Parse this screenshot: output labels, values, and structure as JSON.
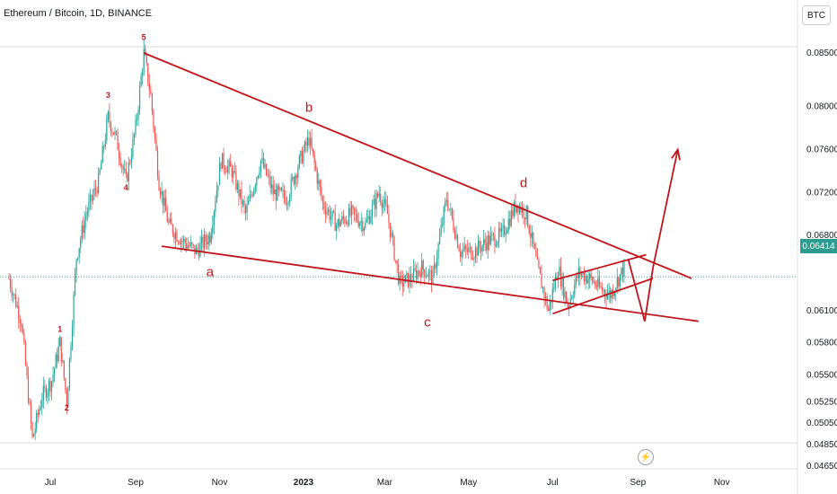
{
  "title": "Ethereum / Bitcoin, 1D, BINANCE",
  "currency_button": "BTC",
  "current_price": "0.06414",
  "colors": {
    "up": "#26a69a",
    "down": "#ef5350",
    "drawing": "#c0151a",
    "wave_label": "#c0151a"
  },
  "icons": [
    "lightning-icon"
  ],
  "chart_data": {
    "type": "candlestick",
    "symbol": "ETH/BTC",
    "interval": "1D",
    "exchange": "BINANCE",
    "y_ticks": [
      "0.08500",
      "0.08000",
      "0.07600",
      "0.07200",
      "0.06800",
      "0.06414",
      "0.06100",
      "0.05800",
      "0.05500",
      "0.05250",
      "0.05050",
      "0.04850",
      "0.04650"
    ],
    "x_ticks": [
      "Jul",
      "Sep",
      "Nov",
      "2023",
      "Mar",
      "May",
      "Jul",
      "Sep",
      "Nov"
    ],
    "x_tick_dates": [
      "2022-07-01",
      "2022-09-01",
      "2022-11-01",
      "2023-01-01",
      "2023-03-01",
      "2023-05-01",
      "2023-07-01",
      "2023-09-01",
      "2023-11-01"
    ],
    "grid": false,
    "price_path": [
      [
        "2022-06-01",
        0.064
      ],
      [
        "2022-06-10",
        0.06
      ],
      [
        "2022-06-18",
        0.049
      ],
      [
        "2022-06-25",
        0.053
      ],
      [
        "2022-07-02",
        0.0545
      ],
      [
        "2022-07-08",
        0.058
      ],
      [
        "2022-07-13",
        0.0525
      ],
      [
        "2022-07-20",
        0.066
      ],
      [
        "2022-07-27",
        0.07
      ],
      [
        "2022-08-05",
        0.073
      ],
      [
        "2022-08-12",
        0.079
      ],
      [
        "2022-08-18",
        0.077
      ],
      [
        "2022-08-25",
        0.073
      ],
      [
        "2022-09-01",
        0.078
      ],
      [
        "2022-09-07",
        0.085
      ],
      [
        "2022-09-12",
        0.081
      ],
      [
        "2022-09-18",
        0.073
      ],
      [
        "2022-09-25",
        0.069
      ],
      [
        "2022-10-05",
        0.0675
      ],
      [
        "2022-10-15",
        0.0665
      ],
      [
        "2022-10-25",
        0.068
      ],
      [
        "2022-11-02",
        0.075
      ],
      [
        "2022-11-10",
        0.074
      ],
      [
        "2022-11-20",
        0.07
      ],
      [
        "2022-12-01",
        0.075
      ],
      [
        "2022-12-10",
        0.072
      ],
      [
        "2022-12-20",
        0.0715
      ],
      [
        "2022-12-28",
        0.0745
      ],
      [
        "2023-01-05",
        0.077
      ],
      [
        "2023-01-15",
        0.071
      ],
      [
        "2023-01-25",
        0.069
      ],
      [
        "2023-02-05",
        0.07
      ],
      [
        "2023-02-15",
        0.069
      ],
      [
        "2023-02-25",
        0.072
      ],
      [
        "2023-03-03",
        0.07
      ],
      [
        "2023-03-12",
        0.0635
      ],
      [
        "2023-03-20",
        0.064
      ],
      [
        "2023-03-28",
        0.065
      ],
      [
        "2023-04-05",
        0.064
      ],
      [
        "2023-04-15",
        0.0715
      ],
      [
        "2023-04-25",
        0.0665
      ],
      [
        "2023-05-05",
        0.0665
      ],
      [
        "2023-05-15",
        0.0675
      ],
      [
        "2023-05-25",
        0.068
      ],
      [
        "2023-06-05",
        0.071
      ],
      [
        "2023-06-12",
        0.07
      ],
      [
        "2023-06-20",
        0.065
      ],
      [
        "2023-06-28",
        0.061
      ],
      [
        "2023-07-05",
        0.065
      ],
      [
        "2023-07-12",
        0.0615
      ],
      [
        "2023-07-20",
        0.0645
      ],
      [
        "2023-07-28",
        0.064
      ],
      [
        "2023-08-05",
        0.063
      ],
      [
        "2023-08-12",
        0.0625
      ],
      [
        "2023-08-18",
        0.064
      ],
      [
        "2023-08-22",
        0.065
      ]
    ],
    "drawings": [
      {
        "kind": "trendline",
        "label": "upper-wedge-line",
        "points": [
          [
            "2022-09-07",
            0.085
          ],
          [
            "2023-10-10",
            0.064
          ]
        ]
      },
      {
        "kind": "trendline",
        "label": "lower-wedge-line",
        "points": [
          [
            "2022-09-20",
            0.067
          ],
          [
            "2023-10-15",
            0.06
          ]
        ]
      },
      {
        "kind": "trendline",
        "label": "triangle-top",
        "points": [
          [
            "2023-07-01",
            0.0638
          ],
          [
            "2023-09-07",
            0.0662
          ]
        ]
      },
      {
        "kind": "trendline",
        "label": "triangle-bottom",
        "points": [
          [
            "2023-07-01",
            0.0607
          ],
          [
            "2023-09-12",
            0.064
          ]
        ]
      },
      {
        "kind": "path",
        "label": "projection",
        "points": [
          [
            "2023-08-25",
            0.0658
          ],
          [
            "2023-09-06",
            0.06
          ],
          [
            "2023-09-12",
            0.065
          ],
          [
            "2023-09-30",
            0.076
          ]
        ]
      }
    ],
    "wave_labels": [
      {
        "text": "1",
        "date": "2022-07-08",
        "price": 0.059
      },
      {
        "text": "2",
        "date": "2022-07-13",
        "price": 0.0517
      },
      {
        "text": "3",
        "date": "2022-08-12",
        "price": 0.0808
      },
      {
        "text": "4",
        "date": "2022-08-25",
        "price": 0.0722
      },
      {
        "text": "5",
        "date": "2022-09-07",
        "price": 0.0862
      },
      {
        "text": "a",
        "date": "2022-10-25",
        "price": 0.0642
      },
      {
        "text": "b",
        "date": "2023-01-05",
        "price": 0.0795
      },
      {
        "text": "c",
        "date": "2023-04-01",
        "price": 0.0595
      },
      {
        "text": "d",
        "date": "2023-06-10",
        "price": 0.0725
      }
    ]
  }
}
